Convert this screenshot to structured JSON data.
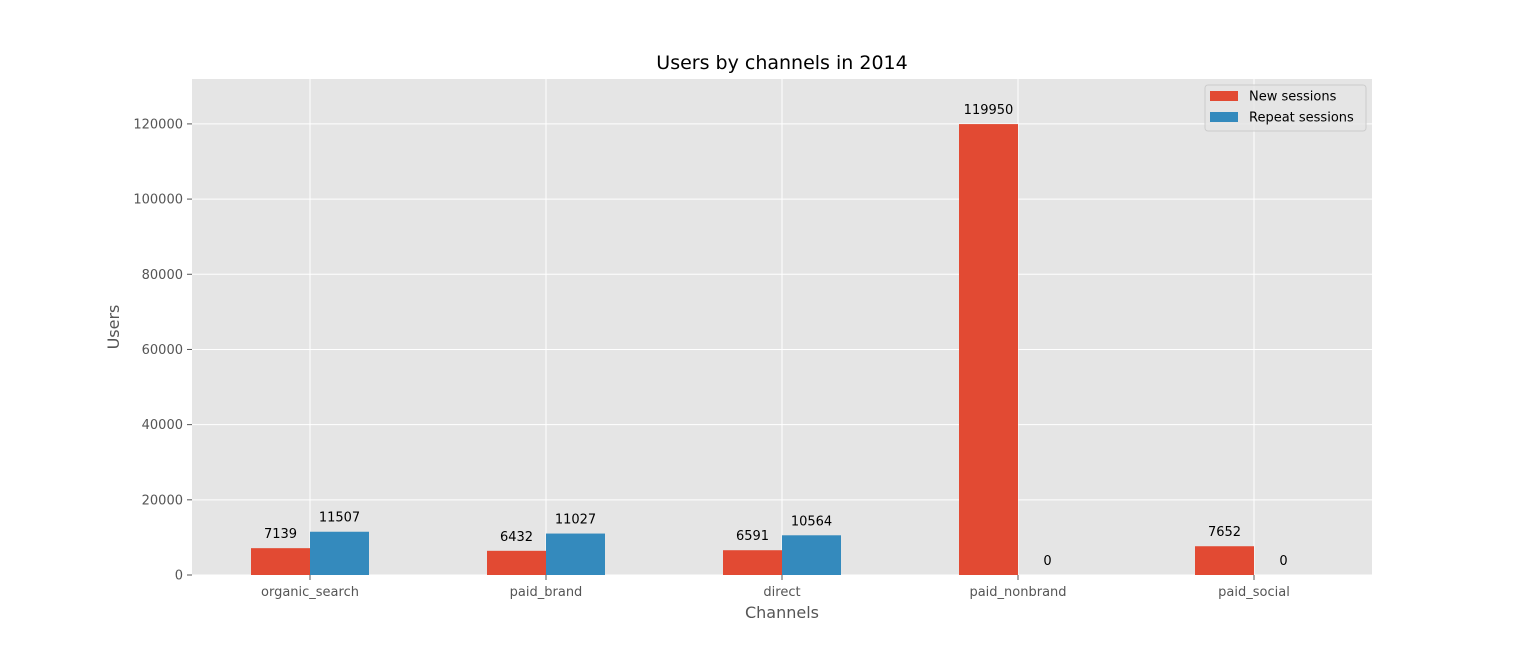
{
  "chart_data": {
    "type": "bar",
    "title": "Users by channels in 2014",
    "xlabel": "Channels",
    "ylabel": "Users",
    "categories": [
      "organic_search",
      "paid_brand",
      "direct",
      "paid_nonbrand",
      "paid_social"
    ],
    "series": [
      {
        "name": "New sessions",
        "color": "#E24A33",
        "values": [
          7139,
          6432,
          6591,
          119950,
          7652
        ]
      },
      {
        "name": "Repeat sessions",
        "color": "#348ABD",
        "values": [
          11507,
          11027,
          10564,
          0,
          0
        ]
      }
    ],
    "ylim": [
      0,
      131945
    ],
    "yticks": [
      0,
      20000,
      40000,
      60000,
      80000,
      100000,
      120000
    ],
    "grid": true,
    "legend_position": "top-right",
    "background_color": "#E5E5E5",
    "grid_color": "#FFFFFF"
  }
}
